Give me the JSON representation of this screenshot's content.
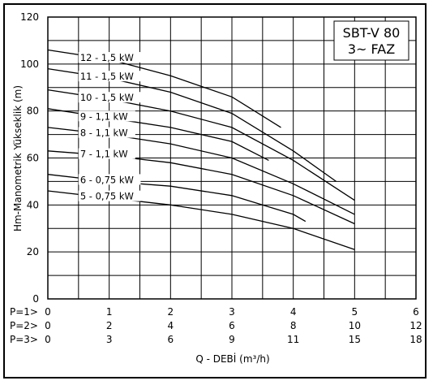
{
  "chart_data": {
    "type": "line",
    "title_lines": [
      "SBT-V 80",
      "3~ FAZ"
    ],
    "ylabel": "Hm-Manometrik Yükseklik (m)",
    "xlabel": "Q - DEBİ (m³/h)",
    "ylim": [
      0,
      120
    ],
    "y_ticks": [
      "0",
      "20",
      "40",
      "60",
      "80",
      "100",
      "120"
    ],
    "xlim": [
      0,
      6
    ],
    "flow_scales": [
      {
        "prefix": "P=1>",
        "ticks": [
          "0",
          "1",
          "2",
          "3",
          "4",
          "5",
          "6"
        ]
      },
      {
        "prefix": "P=2>",
        "ticks": [
          "0",
          "2",
          "4",
          "6",
          "8",
          "10",
          "12"
        ]
      },
      {
        "prefix": "P=3>",
        "ticks": [
          "0",
          "3",
          "6",
          "9",
          "11",
          "15",
          "18"
        ]
      }
    ],
    "grid": true,
    "series": [
      {
        "name": "12 - 1,5 kW",
        "x": [
          0,
          1,
          2,
          3,
          3.8
        ],
        "y": [
          106,
          102,
          95,
          86,
          73
        ]
      },
      {
        "name": "11 - 1,5 kW",
        "x": [
          0,
          1,
          2,
          3,
          4,
          4.7
        ],
        "y": [
          98,
          94,
          88,
          79,
          63,
          50
        ]
      },
      {
        "name": "10 - 1,5 kW",
        "x": [
          0,
          1,
          2,
          3,
          4,
          5
        ],
        "y": [
          89,
          85,
          80,
          73,
          59,
          42
        ]
      },
      {
        "name": "9 - 1,1 kW",
        "x": [
          0,
          1,
          2,
          3,
          3.6
        ],
        "y": [
          81,
          77,
          73,
          67,
          59
        ]
      },
      {
        "name": "8 - 1,1 kW",
        "x": [
          0,
          1,
          2,
          3,
          4,
          5
        ],
        "y": [
          73,
          70,
          66,
          60,
          49,
          36
        ]
      },
      {
        "name": "7 - 1,1 kW",
        "x": [
          0,
          1,
          2,
          3,
          4,
          5
        ],
        "y": [
          63,
          61,
          58,
          53,
          44,
          32
        ]
      },
      {
        "name": "6 - 0,75 kW",
        "x": [
          0,
          1,
          2,
          3,
          4,
          4.2
        ],
        "y": [
          53,
          50,
          48,
          44,
          36,
          33
        ]
      },
      {
        "name": "5 - 0,75 kW",
        "x": [
          0,
          1,
          2,
          3,
          4,
          5
        ],
        "y": [
          46,
          43,
          40,
          36,
          30,
          21
        ]
      }
    ]
  }
}
